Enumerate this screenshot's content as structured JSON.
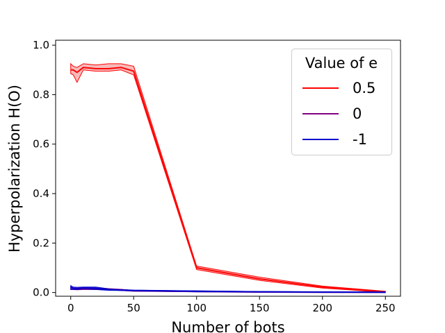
{
  "chart_data": {
    "type": "line",
    "xlabel": "Number of bots",
    "ylabel": "Hyperpolarization H(O)",
    "xlim": [
      -12,
      262
    ],
    "ylim": [
      -0.015,
      1.02
    ],
    "xticks": [
      0,
      50,
      100,
      150,
      200,
      250
    ],
    "yticks": [
      0.0,
      0.2,
      0.4,
      0.6,
      0.8,
      1.0
    ],
    "xtick_labels": [
      "0",
      "50",
      "100",
      "150",
      "200",
      "250"
    ],
    "ytick_labels": [
      "0.0",
      "0.2",
      "0.4",
      "0.6",
      "0.8",
      "1.0"
    ],
    "grid": false,
    "legend": {
      "title": "Value of e",
      "placement": "top-right"
    },
    "series": [
      {
        "name": "0.5",
        "color": "#ff0000",
        "band_color": "#f08080",
        "x": [
          0,
          2,
          5,
          10,
          20,
          30,
          40,
          50,
          100,
          150,
          200,
          250
        ],
        "values": [
          0.9,
          0.9,
          0.89,
          0.91,
          0.905,
          0.905,
          0.91,
          0.895,
          0.1,
          0.055,
          0.022,
          0.003
        ],
        "lower": [
          0.885,
          0.88,
          0.85,
          0.9,
          0.895,
          0.895,
          0.9,
          0.88,
          0.093,
          0.049,
          0.018,
          0.001
        ],
        "upper": [
          0.925,
          0.915,
          0.91,
          0.925,
          0.92,
          0.925,
          0.925,
          0.915,
          0.107,
          0.062,
          0.026,
          0.005
        ]
      },
      {
        "name": "0",
        "color": "#800080",
        "band_color": "#c080c0",
        "x": [
          0,
          2,
          5,
          10,
          20,
          30,
          40,
          50,
          100,
          150,
          200,
          250
        ],
        "values": [
          0.018,
          0.016,
          0.015,
          0.016,
          0.016,
          0.013,
          0.011,
          0.007,
          0.004,
          0.002,
          0.001,
          0.001
        ],
        "lower": [
          0.012,
          0.012,
          0.011,
          0.012,
          0.012,
          0.01,
          0.008,
          0.005,
          0.003,
          0.001,
          0.0,
          0.0
        ],
        "upper": [
          0.024,
          0.02,
          0.019,
          0.02,
          0.02,
          0.016,
          0.013,
          0.009,
          0.006,
          0.003,
          0.002,
          0.002
        ]
      },
      {
        "name": "-1",
        "color": "#0000cc",
        "band_color": "#7070ff",
        "x": [
          0,
          2,
          5,
          10,
          20,
          30,
          40,
          50,
          100,
          150,
          200,
          250
        ],
        "values": [
          0.02,
          0.017,
          0.016,
          0.018,
          0.017,
          0.012,
          0.01,
          0.008,
          0.005,
          0.003,
          0.002,
          0.001
        ],
        "lower": [
          0.012,
          0.012,
          0.012,
          0.014,
          0.012,
          0.009,
          0.008,
          0.006,
          0.003,
          0.002,
          0.001,
          0.0
        ],
        "upper": [
          0.028,
          0.022,
          0.021,
          0.022,
          0.022,
          0.015,
          0.012,
          0.01,
          0.007,
          0.004,
          0.003,
          0.002
        ]
      }
    ]
  }
}
